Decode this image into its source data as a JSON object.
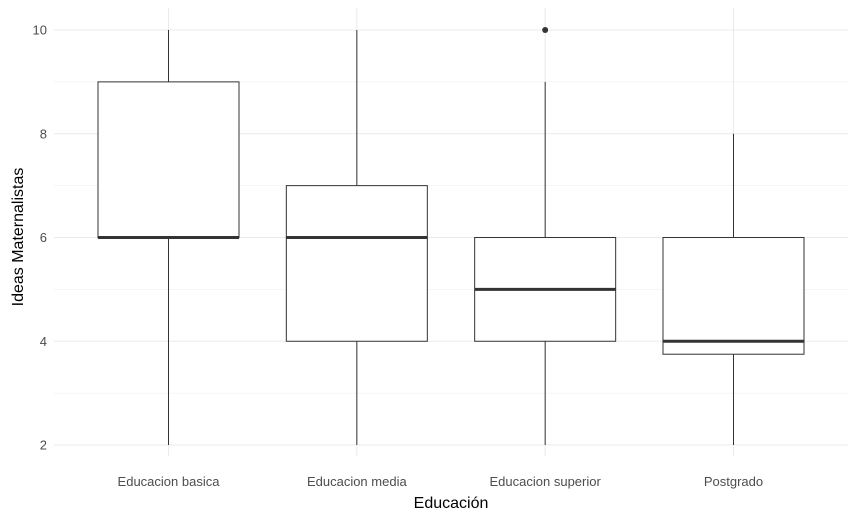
{
  "chart_data": {
    "type": "box",
    "xlabel": "Educación",
    "ylabel": "Ideas Maternalistas",
    "ylim": [
      2,
      10
    ],
    "yticks": [
      2,
      4,
      6,
      8,
      10
    ],
    "categories": [
      "Educacion basica",
      "Educacion media",
      "Educacion superior",
      "Postgrado"
    ],
    "boxes": [
      {
        "category": "Educacion basica",
        "whisker_low": 2,
        "q1": 6,
        "median": 6,
        "q3": 9,
        "whisker_high": 10,
        "outliers": []
      },
      {
        "category": "Educacion media",
        "whisker_low": 2,
        "q1": 4,
        "median": 6,
        "q3": 7,
        "whisker_high": 10,
        "outliers": []
      },
      {
        "category": "Educacion superior",
        "whisker_low": 2,
        "q1": 4,
        "median": 5,
        "q3": 6,
        "whisker_high": 9,
        "outliers": [
          10
        ]
      },
      {
        "category": "Postgrado",
        "whisker_low": 2,
        "q1": 3.75,
        "median": 4,
        "q3": 6,
        "whisker_high": 8,
        "outliers": []
      }
    ],
    "grid": true,
    "legend": "none",
    "colors": {
      "grid": "#ebebeb",
      "box_stroke": "#333333",
      "box_fill": "#ffffff",
      "median": "#333333"
    }
  }
}
